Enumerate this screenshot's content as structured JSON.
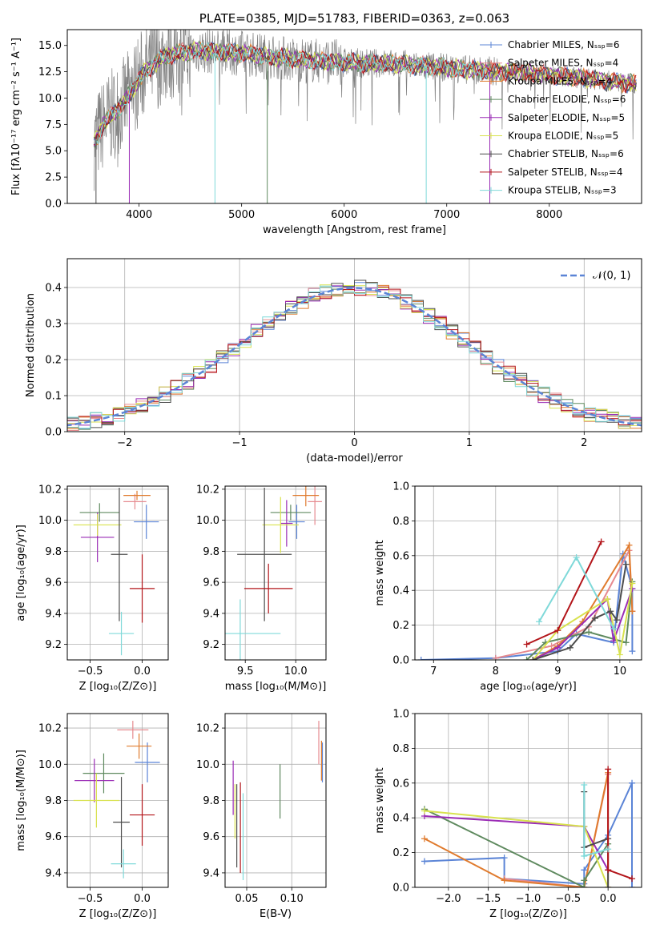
{
  "palette": [
    "#5b84d6",
    "#e68a8f",
    "#e07b2e",
    "#5f8a5f",
    "#9a2bb5",
    "#d8e24e",
    "#4d4d4d",
    "#b3151a",
    "#7fd9d9"
  ],
  "chart_data": [
    {
      "id": "spectrum",
      "type": "line",
      "title": "PLATE=0385, MJD=51783, FIBERID=0363, z=0.063",
      "xlabel": "wavelength [Angstrom, rest frame]",
      "ylabel": "Flux [fλ10⁻¹⁷ erg cm⁻² s⁻¹ A⁻¹]",
      "xlim": [
        3300,
        8900
      ],
      "ylim": [
        0,
        16.5
      ],
      "xticks": [
        "4000",
        "5000",
        "6000",
        "7000",
        "8000"
      ],
      "yticks": [
        "0.0",
        "2.5",
        "5.0",
        "7.5",
        "10.0",
        "12.5",
        "15.0"
      ],
      "legend_position": "top-right",
      "legend": [
        "Chabrier MILES, Nₛₛₚ=6",
        "Salpeter MILES, Nₛₛₚ=4",
        "Kroupa MILES, Nₛₛₚ=4",
        "Chabrier ELODIE, Nₛₛₚ=6",
        "Salpeter ELODIE, Nₛₛₚ=5",
        "Kroupa ELODIE, Nₛₛₚ=5",
        "Chabrier STELIB, Nₛₛₚ=6",
        "Salpeter STELIB, Nₛₛₚ=4",
        "Kroupa STELIB, Nₛₛₚ=3"
      ],
      "continuum": {
        "x": [
          3550,
          3650,
          3750,
          3850,
          3950,
          4050,
          4150,
          4250,
          4400,
          4600,
          4800,
          5000,
          5200,
          5400,
          5600,
          5800,
          6000,
          6200,
          6400,
          6600,
          6800,
          7000,
          7200,
          7400,
          7600,
          7800,
          8000,
          8200,
          8400,
          8600,
          8800
        ],
        "y": [
          5.5,
          7.5,
          8.5,
          9.5,
          11.0,
          12.5,
          13.2,
          14.0,
          14.3,
          14.5,
          14.4,
          14.3,
          14.0,
          13.8,
          13.6,
          13.5,
          13.4,
          13.3,
          13.3,
          13.2,
          13.0,
          12.9,
          12.7,
          12.6,
          12.5,
          12.4,
          12.2,
          12.0,
          11.8,
          11.6,
          11.4
        ]
      },
      "model_xmax": {
        "Kroupa STELIB, Nₛₛₚ=3": 7400
      }
    },
    {
      "id": "residuals",
      "type": "step",
      "xlabel": "(data-model)/error",
      "ylabel": "Normed distribution",
      "xlim": [
        -2.5,
        2.5
      ],
      "ylim": [
        0,
        0.48
      ],
      "xticks": [
        "−2",
        "−1",
        "0",
        "1",
        "2"
      ],
      "yticks": [
        "0.0",
        "0.1",
        "0.2",
        "0.3",
        "0.4"
      ],
      "legend": [
        "𝒩(0, 1)"
      ],
      "legend_position": "top-right",
      "bin_width": 0.1
    },
    {
      "id": "age-vs-Z",
      "type": "errorbar",
      "xlabel": "Z [log₁₀(Z/Z⊙)]",
      "ylabel": "age  [log₁₀(age/yr)]",
      "xlim": [
        -0.72,
        0.25
      ],
      "ylim": [
        9.1,
        10.22
      ],
      "xticks": [
        "−0.5",
        "0.0"
      ],
      "xtickvals": [
        -0.5,
        0.0
      ],
      "yticks": [
        "9.2",
        "9.4",
        "9.6",
        "9.8",
        "10.0",
        "10.2"
      ],
      "points": [
        {
          "x": 0.04,
          "y": 9.99,
          "xerr": 0.12,
          "yerr": 0.11
        },
        {
          "x": -0.07,
          "y": 10.12,
          "xerr": 0.11,
          "yerr": 0.05
        },
        {
          "x": -0.05,
          "y": 10.16,
          "xerr": 0.13,
          "yerr": 0.03
        },
        {
          "x": -0.41,
          "y": 10.05,
          "xerr": 0.19,
          "yerr": 0.06
        },
        {
          "x": -0.43,
          "y": 9.89,
          "xerr": 0.16,
          "yerr": 0.16
        },
        {
          "x": -0.43,
          "y": 9.97,
          "xerr": 0.23,
          "yerr": 0.07
        },
        {
          "x": -0.22,
          "y": 9.78,
          "xerr": 0.08,
          "yerr": 0.43
        },
        {
          "x": 0.0,
          "y": 9.56,
          "xerr": 0.12,
          "yerr": 0.22
        },
        {
          "x": -0.2,
          "y": 9.27,
          "xerr": 0.12,
          "yerr": 0.14
        }
      ]
    },
    {
      "id": "age-vs-mass",
      "type": "errorbar",
      "xlabel": "mass [log₁₀(M/M⊙)]",
      "xlim": [
        9.3,
        10.3
      ],
      "ylim": [
        9.1,
        10.22
      ],
      "xticks": [
        "9.5",
        "10.0"
      ],
      "xtickvals": [
        9.5,
        10.0
      ],
      "yticks": [
        "9.2",
        "9.4",
        "9.6",
        "9.8",
        "10.0",
        "10.2"
      ],
      "points": [
        {
          "x": 10.01,
          "y": 9.99,
          "xerr": 0.08,
          "yerr": 0.11
        },
        {
          "x": 10.19,
          "y": 10.12,
          "xerr": 0.07,
          "yerr": 0.15
        },
        {
          "x": 10.1,
          "y": 10.16,
          "xerr": 0.13,
          "yerr": 0.07
        },
        {
          "x": 9.95,
          "y": 10.05,
          "xerr": 0.2,
          "yerr": 0.05
        },
        {
          "x": 9.91,
          "y": 9.98,
          "xerr": 0.06,
          "yerr": 0.15
        },
        {
          "x": 9.85,
          "y": 9.97,
          "xerr": 0.18,
          "yerr": 0.18
        },
        {
          "x": 9.69,
          "y": 9.78,
          "xerr": 0.27,
          "yerr": 0.43
        },
        {
          "x": 9.73,
          "y": 9.56,
          "xerr": 0.24,
          "yerr": 0.16
        },
        {
          "x": 9.45,
          "y": 9.27,
          "xerr": 0.4,
          "yerr": 0.22
        }
      ]
    },
    {
      "id": "mass-weight-vs-age",
      "type": "line",
      "xlabel": "age  [log₁₀(age/yr)]",
      "ylabel": "mass weight",
      "xlim": [
        6.7,
        10.35
      ],
      "ylim": [
        0,
        1
      ],
      "xticks": [
        "7",
        "8",
        "9",
        "10"
      ],
      "xtickvals": [
        7,
        8,
        9,
        10
      ],
      "yticks": [
        "0.0",
        "0.2",
        "0.4",
        "0.6",
        "0.8",
        "1.0"
      ],
      "series": [
        {
          "x": [
            6.8,
            8.0,
            9.0,
            9.3,
            9.9,
            10.05,
            10.2,
            10.2
          ],
          "y": [
            0.0,
            0.01,
            0.05,
            0.15,
            0.1,
            0.61,
            0.41,
            0.05
          ]
        },
        {
          "x": [
            8.0,
            8.9,
            9.5,
            10.15,
            10.2
          ],
          "y": [
            0.01,
            0.08,
            0.19,
            0.63,
            0.28
          ]
        },
        {
          "x": [
            8.6,
            9.0,
            9.4,
            10.15,
            10.2
          ],
          "y": [
            0.0,
            0.08,
            0.22,
            0.66,
            0.28
          ]
        },
        {
          "x": [
            8.5,
            8.8,
            9.5,
            10.1,
            10.2
          ],
          "y": [
            0.0,
            0.1,
            0.16,
            0.1,
            0.45
          ]
        },
        {
          "x": [
            8.6,
            9.0,
            9.8,
            9.9,
            10.2
          ],
          "y": [
            0.0,
            0.07,
            0.35,
            0.11,
            0.41
          ]
        },
        {
          "x": [
            8.6,
            9.0,
            9.8,
            10.0,
            10.2
          ],
          "y": [
            0.0,
            0.17,
            0.35,
            0.03,
            0.44
          ]
        },
        {
          "x": [
            8.6,
            9.2,
            9.6,
            9.85,
            9.95,
            10.1
          ],
          "y": [
            0.0,
            0.07,
            0.24,
            0.28,
            0.23,
            0.55
          ]
        },
        {
          "x": [
            8.5,
            9.0,
            9.7
          ],
          "y": [
            0.09,
            0.17,
            0.68
          ]
        },
        {
          "x": [
            8.7,
            9.3,
            9.9
          ],
          "y": [
            0.22,
            0.59,
            0.18
          ]
        }
      ]
    },
    {
      "id": "mass-vs-Z",
      "type": "errorbar",
      "xlabel": "Z [log₁₀(Z/Z⊙)]",
      "ylabel": "mass [log₁₀(M/M⊙)]",
      "xlim": [
        -0.72,
        0.25
      ],
      "ylim": [
        9.32,
        10.28
      ],
      "xticks": [
        "−0.5",
        "0.0"
      ],
      "xtickvals": [
        -0.5,
        0.0
      ],
      "yticks": [
        "9.4",
        "9.6",
        "9.8",
        "10.0",
        "10.2"
      ],
      "points": [
        {
          "x": 0.05,
          "y": 10.01,
          "xerr": 0.12,
          "yerr": 0.11
        },
        {
          "x": -0.09,
          "y": 10.19,
          "xerr": 0.15,
          "yerr": 0.05
        },
        {
          "x": -0.03,
          "y": 10.1,
          "xerr": 0.12,
          "yerr": 0.07
        },
        {
          "x": -0.37,
          "y": 9.95,
          "xerr": 0.2,
          "yerr": 0.11
        },
        {
          "x": -0.46,
          "y": 9.91,
          "xerr": 0.19,
          "yerr": 0.12
        },
        {
          "x": -0.44,
          "y": 9.8,
          "xerr": 0.22,
          "yerr": 0.15
        },
        {
          "x": -0.2,
          "y": 9.68,
          "xerr": 0.08,
          "yerr": 0.25
        },
        {
          "x": 0.0,
          "y": 9.72,
          "xerr": 0.12,
          "yerr": 0.17
        },
        {
          "x": -0.18,
          "y": 9.45,
          "xerr": 0.12,
          "yerr": 0.08
        }
      ]
    },
    {
      "id": "mass-vs-ebv",
      "type": "errorbar",
      "xlabel": "E(B-V)",
      "xlim": [
        0.026,
        0.138
      ],
      "ylim": [
        9.32,
        10.28
      ],
      "xticks": [
        "0.05",
        "0.10"
      ],
      "xtickvals": [
        0.05,
        0.1
      ],
      "yticks": [
        "9.4",
        "9.6",
        "9.8",
        "10.0",
        "10.2"
      ],
      "points": [
        {
          "x": 0.134,
          "y": 10.01,
          "xerr": 0,
          "yerr": 0.11
        },
        {
          "x": 0.13,
          "y": 10.12,
          "xerr": 0,
          "yerr": 0.12
        },
        {
          "x": 0.133,
          "y": 10.02,
          "xerr": 0,
          "yerr": 0.11
        },
        {
          "x": 0.087,
          "y": 9.85,
          "xerr": 0,
          "yerr": 0.15
        },
        {
          "x": 0.035,
          "y": 9.87,
          "xerr": 0,
          "yerr": 0.15
        },
        {
          "x": 0.037,
          "y": 9.74,
          "xerr": 0,
          "yerr": 0.15
        },
        {
          "x": 0.039,
          "y": 9.66,
          "xerr": 0,
          "yerr": 0.23
        },
        {
          "x": 0.043,
          "y": 9.65,
          "xerr": 0,
          "yerr": 0.25
        },
        {
          "x": 0.046,
          "y": 9.6,
          "xerr": 0,
          "yerr": 0.24
        }
      ]
    },
    {
      "id": "mass-weight-vs-Z",
      "type": "line",
      "xlabel": "Z [log₁₀(Z/Z⊙)]",
      "ylabel": "mass weight",
      "xlim": [
        -2.42,
        0.42
      ],
      "ylim": [
        0,
        1
      ],
      "xticks": [
        "−2.0",
        "−1.5",
        "−1.0",
        "−0.5",
        "0.0"
      ],
      "xtickvals": [
        -2.0,
        -1.5,
        -1.0,
        -0.5,
        0.0
      ],
      "yticks": [
        "0.0",
        "0.2",
        "0.4",
        "0.6",
        "0.8",
        "1.0"
      ],
      "series": [
        {
          "x": [
            -2.3,
            -1.3,
            -1.3,
            -0.3,
            -0.3,
            0.0,
            0.3,
            0.3
          ],
          "y": [
            0.15,
            0.17,
            0.05,
            0.02,
            0.1,
            0.3,
            0.6,
            0.0
          ]
        },
        {
          "x": [
            -1.3,
            -0.3,
            0.0
          ],
          "y": [
            0.05,
            0.0,
            0.65
          ]
        },
        {
          "x": [
            -2.3,
            -1.3,
            -0.3,
            0.0,
            0.0
          ],
          "y": [
            0.28,
            0.04,
            0.0,
            0.66,
            0.0
          ]
        },
        {
          "x": [
            -2.3,
            -0.3,
            -0.3,
            0.0
          ],
          "y": [
            0.45,
            0.0,
            0.04,
            0.25
          ]
        },
        {
          "x": [
            -2.3,
            -0.3,
            0.0
          ],
          "y": [
            0.41,
            0.35,
            0.1
          ]
        },
        {
          "x": [
            -2.3,
            -0.3,
            0.0
          ],
          "y": [
            0.44,
            0.35,
            0.0
          ]
        },
        {
          "x": [
            -0.3,
            -0.3,
            0.0,
            0.0
          ],
          "y": [
            0.55,
            0.23,
            0.28,
            0.0
          ]
        },
        {
          "x": [
            0.0,
            0.0,
            0.3
          ],
          "y": [
            0.68,
            0.1,
            0.05
          ]
        },
        {
          "x": [
            -0.3,
            -0.3,
            0.0
          ],
          "y": [
            0.59,
            0.18,
            0.22
          ]
        }
      ]
    }
  ]
}
